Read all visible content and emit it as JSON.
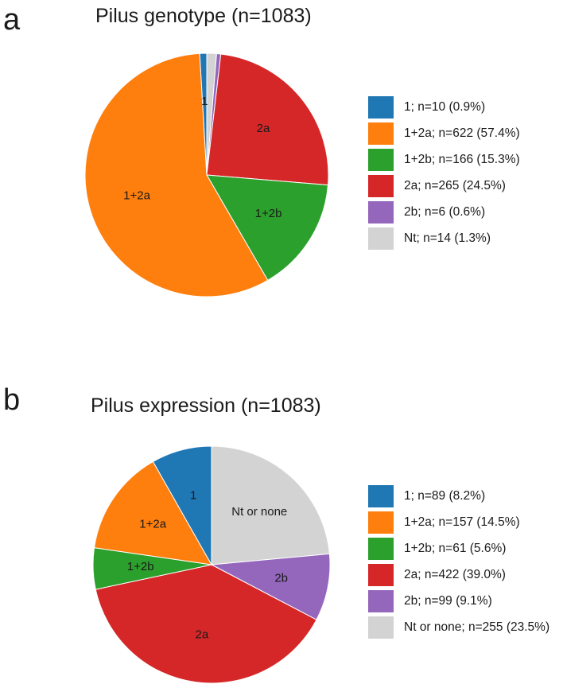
{
  "chart_data": [
    {
      "panel_letter": "a",
      "type": "pie",
      "title": "Pilus genotype (n=1083)",
      "slices": [
        {
          "label": "1",
          "legend": "1; n=10 (0.9%)",
          "value": 10,
          "percent": 0.9,
          "color": "#1f77b4",
          "show_label": true
        },
        {
          "label": "1+2a",
          "legend": "1+2a; n=622 (57.4%)",
          "value": 622,
          "percent": 57.4,
          "color": "#ff7f0e",
          "show_label": true
        },
        {
          "label": "1+2b",
          "legend": "1+2b; n=166 (15.3%)",
          "value": 166,
          "percent": 15.3,
          "color": "#2ca02c",
          "show_label": true
        },
        {
          "label": "2a",
          "legend": "2a; n=265 (24.5%)",
          "value": 265,
          "percent": 24.5,
          "color": "#d62728",
          "show_label": true
        },
        {
          "label": "2b",
          "legend": "2b; n=6 (0.6%)",
          "value": 6,
          "percent": 0.6,
          "color": "#9467bd",
          "show_label": false
        },
        {
          "label": "Nt",
          "legend": "Nt; n=14 (1.3%)",
          "value": 14,
          "percent": 1.3,
          "color": "#d3d3d3",
          "show_label": false
        }
      ],
      "direction": "clockwise",
      "start": "12 o'clock, reverse legend order",
      "legend_placement": "right"
    },
    {
      "panel_letter": "b",
      "type": "pie",
      "title": "Pilus expression (n=1083)",
      "slices": [
        {
          "label": "1",
          "legend": "1; n=89 (8.2%)",
          "value": 89,
          "percent": 8.2,
          "color": "#1f77b4",
          "show_label": true
        },
        {
          "label": "1+2a",
          "legend": "1+2a; n=157 (14.5%)",
          "value": 157,
          "percent": 14.5,
          "color": "#ff7f0e",
          "show_label": true
        },
        {
          "label": "1+2b",
          "legend": "1+2b; n=61 (5.6%)",
          "value": 61,
          "percent": 5.6,
          "color": "#2ca02c",
          "show_label": true
        },
        {
          "label": "2a",
          "legend": "2a; n=422 (39.0%)",
          "value": 422,
          "percent": 39.0,
          "color": "#d62728",
          "show_label": true
        },
        {
          "label": "2b",
          "legend": "2b; n=99 (9.1%)",
          "value": 99,
          "percent": 9.1,
          "color": "#9467bd",
          "show_label": true
        },
        {
          "label": "Nt or none",
          "legend": "Nt or none; n=255 (23.5%)",
          "value": 255,
          "percent": 23.5,
          "color": "#d3d3d3",
          "show_label": true
        }
      ],
      "direction": "clockwise",
      "start": "12 o'clock, reverse legend order",
      "legend_placement": "right"
    }
  ]
}
